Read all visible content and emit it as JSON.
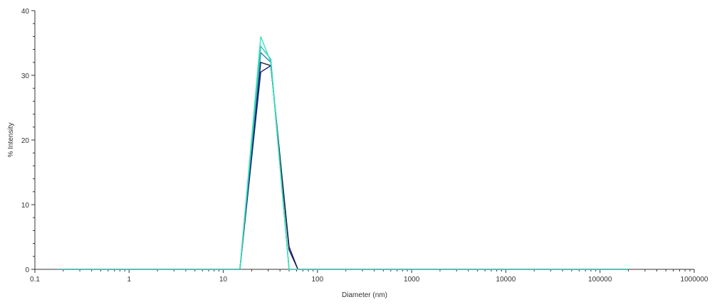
{
  "chart_data": {
    "type": "line",
    "xscale": "log",
    "xlabel": "Diameter (nm)",
    "ylabel": "% Intensity",
    "xlim": [
      0.1,
      1000000
    ],
    "ylim": [
      0,
      40
    ],
    "xticks": [
      "0.1",
      "1",
      "10",
      "100",
      "1000",
      "10000",
      "100000",
      "1000000"
    ],
    "yticks": [
      "0",
      "10",
      "20",
      "30",
      "40"
    ],
    "grid": false,
    "legend": "none",
    "series": [
      {
        "color": "#1a1f8a",
        "x": [
          0.17,
          15,
          25,
          32,
          50,
          62,
          200000
        ],
        "y": [
          0,
          0,
          30.5,
          31.5,
          3.5,
          0,
          0
        ]
      },
      {
        "color": "#222244",
        "x": [
          0.17,
          15,
          25,
          32,
          50,
          62,
          200000
        ],
        "y": [
          0,
          0,
          32,
          31.5,
          3,
          0,
          0
        ]
      },
      {
        "color": "#2a7fb8",
        "x": [
          0.17,
          15,
          25,
          32,
          50,
          200000
        ],
        "y": [
          0,
          0,
          33.5,
          32,
          0,
          0
        ]
      },
      {
        "color": "#35c4b5",
        "x": [
          0.17,
          15,
          25,
          32,
          50,
          200000
        ],
        "y": [
          0,
          0,
          34.5,
          32.5,
          0,
          0
        ]
      },
      {
        "color": "#2ee6b8",
        "x": [
          0.17,
          15,
          25,
          32,
          50,
          200000
        ],
        "y": [
          0,
          0,
          36,
          32,
          0,
          0
        ]
      }
    ]
  }
}
